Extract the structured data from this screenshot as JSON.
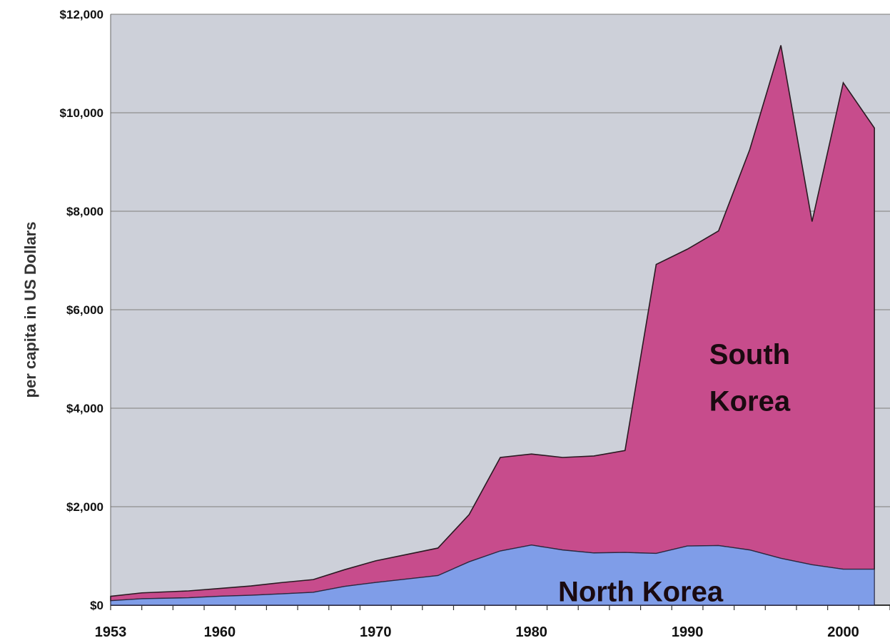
{
  "chart_data": {
    "type": "area",
    "stacked": true,
    "title": "",
    "xlabel": "",
    "ylabel": "per capita in US Dollars",
    "xlim": [
      1953,
      2003
    ],
    "ylim": [
      0,
      12000
    ],
    "x_ticks": [
      {
        "value": 1953,
        "label": "1953"
      },
      {
        "value": 1960,
        "label": "1960"
      },
      {
        "value": 1970,
        "label": "1970"
      },
      {
        "value": 1980,
        "label": "1980"
      },
      {
        "value": 1990,
        "label": "1990"
      },
      {
        "value": 2000,
        "label": "2000"
      }
    ],
    "y_ticks": [
      {
        "value": 0,
        "label": "$0"
      },
      {
        "value": 2000,
        "label": "$2,000"
      },
      {
        "value": 4000,
        "label": "$4,000"
      },
      {
        "value": 6000,
        "label": "$6,000"
      },
      {
        "value": 8000,
        "label": "$8,000"
      },
      {
        "value": 10000,
        "label": "$10,000"
      },
      {
        "value": 12000,
        "label": "$12,000"
      }
    ],
    "grid": true,
    "plot_background": "#cdd0d9",
    "series": [
      {
        "name": "North Korea",
        "color": "#7f9de8",
        "x": [
          1953,
          1955,
          1958,
          1960,
          1962,
          1964,
          1966,
          1968,
          1970,
          1972,
          1974,
          1976,
          1978,
          1980,
          1982,
          1984,
          1986,
          1988,
          1990,
          1992,
          1994,
          1996,
          1998,
          2000,
          2002
        ],
        "values": [
          90,
          130,
          150,
          180,
          200,
          230,
          260,
          380,
          460,
          530,
          600,
          880,
          1100,
          1220,
          1120,
          1060,
          1070,
          1050,
          1200,
          1210,
          1120,
          950,
          820,
          730,
          730
        ]
      },
      {
        "name": "South Korea",
        "color": "#c74c8c",
        "stacked_top": [
          180,
          250,
          290,
          340,
          390,
          460,
          520,
          720,
          900,
          1030,
          1160,
          1840,
          3000,
          3070,
          3000,
          3030,
          3140,
          6920,
          7230,
          7600,
          9250,
          11370,
          7790,
          10610,
          9690
        ]
      }
    ]
  },
  "labels": {
    "south_line1": "South",
    "south_line2": "Korea",
    "north": "North Korea"
  }
}
